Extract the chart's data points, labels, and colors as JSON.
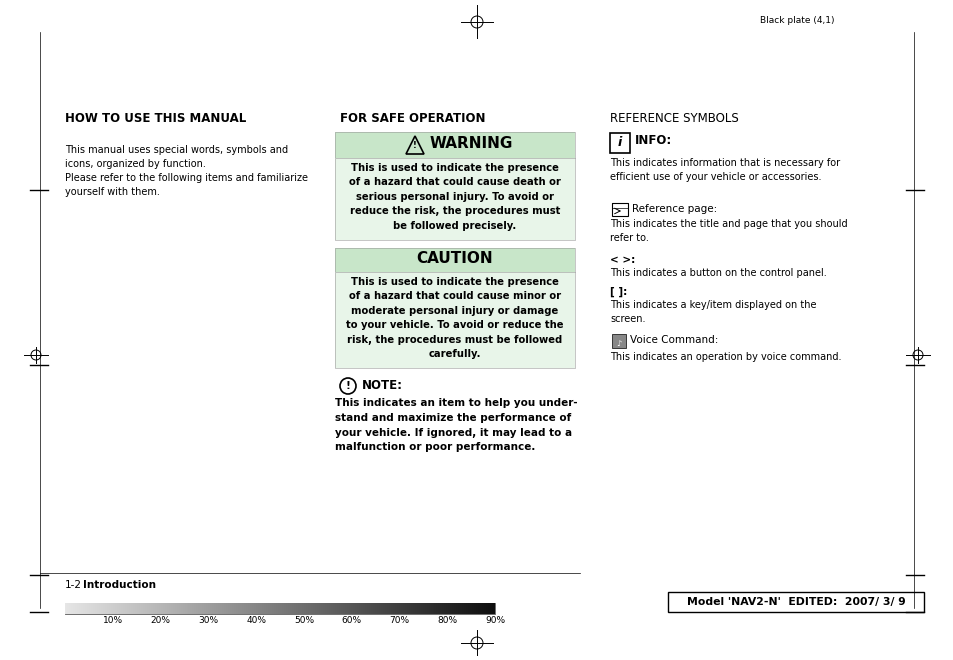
{
  "bg_color": "#ffffff",
  "green_header": "#c8e6c9",
  "green_body": "#e8f5e9",
  "top_right_text": "Black plate (4,1)",
  "section1_title": "HOW TO USE THIS MANUAL",
  "section1_body1": "This manual uses special words, symbols and\nicons, organized by function.",
  "section1_body2": "Please refer to the following items and familiarize\nyourself with them.",
  "section2_title": "FOR SAFE OPERATION",
  "warning_body": "This is used to indicate the presence\nof a hazard that could cause death or\nserious personal injury. To avoid or\nreduce the risk, the procedures must\nbe followed precisely.",
  "caution_body": "This is used to indicate the presence\nof a hazard that could cause minor or\nmoderate personal injury or damage\nto your vehicle. To avoid or reduce the\nrisk, the procedures must be followed\ncarefully.",
  "note_body": "This indicates an item to help you under-\nstand and maximize the performance of\nyour vehicle. If ignored, it may lead to a\nmalfunction or poor performance.",
  "section3_title": "REFERENCE SYMBOLS",
  "info_body": "This indicates information that is necessary for\nefficient use of your vehicle or accessories.",
  "ref_label": "Reference page:",
  "ref_body": "This indicates the title and page that you should\nrefer to.",
  "angle_label": "< >:",
  "angle_body": "This indicates a button on the control panel.",
  "bracket_label": "[ ]:",
  "bracket_body": "This indicates a key/item displayed on the\nscreen.",
  "voice_label": "Voice Command:",
  "voice_body": "This indicates an operation by voice command.",
  "footer_left": "1-2",
  "footer_left_bold": "Introduction",
  "footer_right": "Model 'NAV2-N'  EDITED:  2007/ 3/ 9",
  "progress_labels": [
    "10%",
    "20%",
    "30%",
    "40%",
    "50%",
    "60%",
    "70%",
    "80%",
    "90%"
  ]
}
